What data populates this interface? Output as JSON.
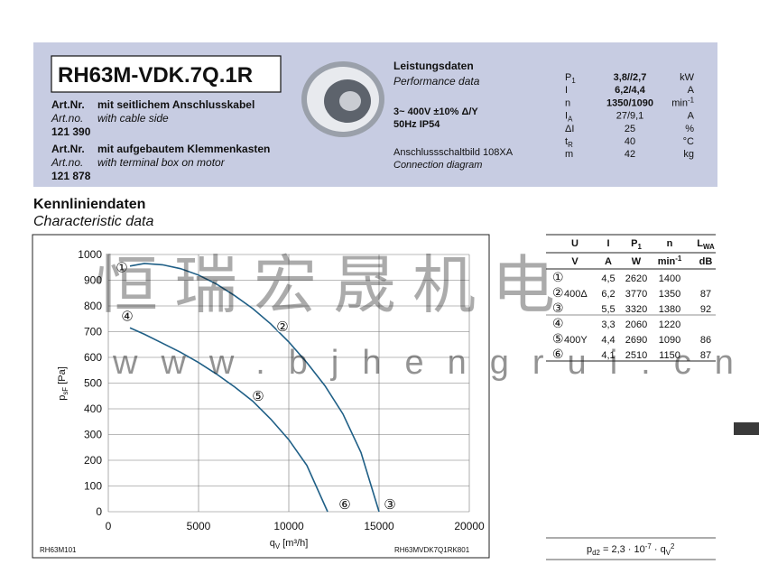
{
  "header": {
    "model": "RH63M-VDK.7Q.1R",
    "variants": [
      {
        "label_de": "Art.Nr.",
        "desc_de": "mit seitlichem Anschlusskabel",
        "label_en": "Art.no.",
        "desc_en": "with cable side",
        "number": "121 390"
      },
      {
        "label_de": "Art.Nr.",
        "desc_de": "mit aufgebautem Klemmenkasten",
        "label_en": "Art.no.",
        "desc_en": "with terminal box on motor",
        "number": "121 878"
      }
    ]
  },
  "performance": {
    "title_de": "Leistungsdaten",
    "title_en": "Performance data",
    "voltage": "3~ 400V ±10% Δ/Y",
    "freq": "50Hz  IP54",
    "diagram_de": "Anschlussschaltbild 108XA",
    "diagram_en": "Connection diagram",
    "params": [
      {
        "symbol": [
          {
            "t": "P"
          },
          {
            "sub": "1"
          }
        ],
        "value": "3,8//2,7",
        "unit": "kW"
      },
      {
        "symbol": "I",
        "value": "6,2/4,4",
        "unit": "A"
      },
      {
        "symbol": "n",
        "value": "1350/1090",
        "unit": [
          {
            "t": "min"
          },
          {
            "sup": "-1"
          }
        ]
      },
      {
        "symbol": [
          {
            "t": "I"
          },
          {
            "sub": "A"
          }
        ],
        "value": "27/9,1",
        "unit": "A"
      },
      {
        "symbol": "ΔI",
        "value": "25",
        "unit": "%"
      },
      {
        "symbol": [
          {
            "t": "t"
          },
          {
            "sub": "R"
          }
        ],
        "value": "40",
        "unit": "°C"
      },
      {
        "symbol": "m",
        "value": "42",
        "unit": "kg"
      }
    ]
  },
  "section": {
    "title_de": "Kennliniendaten",
    "title_en": "Characteristic data"
  },
  "watermark": {
    "cn": "恒瑞宏晟机电",
    "url": "www.bjhengrui.cn"
  },
  "chart_data": {
    "type": "line",
    "x_label": [
      {
        "t": "q"
      },
      {
        "sub": "V"
      },
      {
        "t": " [m³/h]"
      }
    ],
    "y_label": [
      {
        "t": "p"
      },
      {
        "sub": "sF"
      },
      {
        "t": " [Pa]"
      }
    ],
    "xlim": [
      0,
      20000
    ],
    "xticks": [
      0,
      5000,
      10000,
      15000,
      20000
    ],
    "ylim": [
      0,
      1000
    ],
    "yticks": [
      0,
      100,
      200,
      300,
      400,
      500,
      600,
      700,
      800,
      900,
      1000
    ],
    "grid": true,
    "series": [
      {
        "color": "#1f5f86",
        "x": [
          1200,
          2000,
          3000,
          4000,
          5000,
          6000,
          7000,
          8000,
          9000,
          10000,
          11000,
          12000,
          13000,
          14000,
          15000
        ],
        "values": [
          955,
          965,
          960,
          945,
          920,
          885,
          840,
          790,
          730,
          660,
          580,
          490,
          380,
          230,
          0
        ]
      },
      {
        "color": "#1f5f86",
        "x": [
          1200,
          2000,
          3000,
          4000,
          5000,
          6000,
          7000,
          8000,
          9000,
          10000,
          11000,
          12150
        ],
        "values": [
          715,
          690,
          655,
          620,
          580,
          535,
          485,
          430,
          360,
          280,
          180,
          0
        ]
      }
    ],
    "annotations": [
      {
        "text": "①",
        "x": 750,
        "y": 950
      },
      {
        "text": "②",
        "x": 9650,
        "y": 720
      },
      {
        "text": "③",
        "x": 15600,
        "y": 28
      },
      {
        "text": "④",
        "x": 1050,
        "y": 760
      },
      {
        "text": "⑤",
        "x": 8300,
        "y": 450
      },
      {
        "text": "⑥",
        "x": 13100,
        "y": 28
      }
    ],
    "code_left": "RH63M101",
    "code_right": "RH63MVDK7Q1RK801"
  },
  "table": {
    "header": [
      "U",
      "I",
      [
        {
          "t": "P"
        },
        {
          "sub": "1"
        }
      ],
      "n",
      [
        {
          "t": "L"
        },
        {
          "sub": "WA"
        }
      ]
    ],
    "units": [
      "V",
      "A",
      "W",
      [
        {
          "t": "min"
        },
        {
          "sup": "-1"
        }
      ],
      "dB"
    ],
    "rows": [
      [
        "①",
        null,
        "4,5",
        "2620",
        "1400",
        null
      ],
      [
        "②",
        "400Δ",
        "6,2",
        "3770",
        "1350",
        "87"
      ],
      [
        "③",
        null,
        "5,5",
        "3320",
        "1380",
        "92"
      ],
      [
        "④",
        null,
        "3,3",
        "2060",
        "1220",
        null
      ],
      [
        "⑤",
        "400Y",
        "4,4",
        "2690",
        "1090",
        "86"
      ],
      [
        "⑥",
        null,
        "4,1",
        "2510",
        "1150",
        "87"
      ]
    ]
  },
  "formula": [
    {
      "t": "p"
    },
    {
      "sub": "d2"
    },
    {
      "t": " = 2,3 · 10"
    },
    {
      "sup": "-7"
    },
    {
      "t": " · q"
    },
    {
      "sub": "V"
    },
    {
      "sup": "2"
    }
  ]
}
